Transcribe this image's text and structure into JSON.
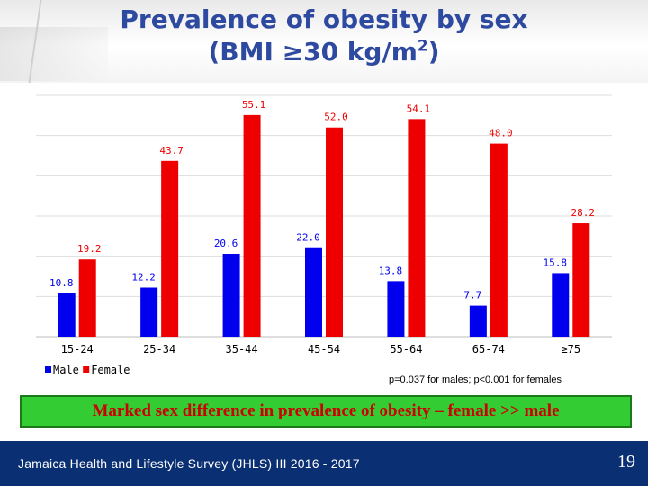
{
  "slide": {
    "title_line1": "Prevalence of obesity by sex",
    "title_line2_pre": "(BMI ≥30 kg/m",
    "title_sup": "2",
    "title_line2_post": ")",
    "note": "p=0.037 for males; p<0.001 for females",
    "banner": "Marked sex difference in prevalence of obesity – female >> male",
    "footer_source": "Jamaica Health and Lifestyle Survey (JHLS) III 2016 - 2017",
    "page_number": "19"
  },
  "colors": {
    "male": "#0000ee",
    "female": "#ee0000",
    "title": "#2e4aa0",
    "banner_bg": "#33cc33",
    "banner_text": "#cc0000",
    "footer_bg": "#0b2f73"
  },
  "chart_data": {
    "type": "bar",
    "categories": [
      "15-24",
      "25-34",
      "35-44",
      "45-54",
      "55-64",
      "65-74",
      "≥75"
    ],
    "series": [
      {
        "name": "Male",
        "values": [
          10.8,
          12.2,
          20.6,
          22.0,
          13.8,
          7.7,
          15.8
        ]
      },
      {
        "name": "Female",
        "values": [
          19.2,
          43.7,
          55.1,
          52.0,
          54.1,
          48.0,
          28.2
        ]
      }
    ],
    "ylim": [
      0,
      60
    ],
    "grid": true,
    "legend": "bottom-left"
  }
}
